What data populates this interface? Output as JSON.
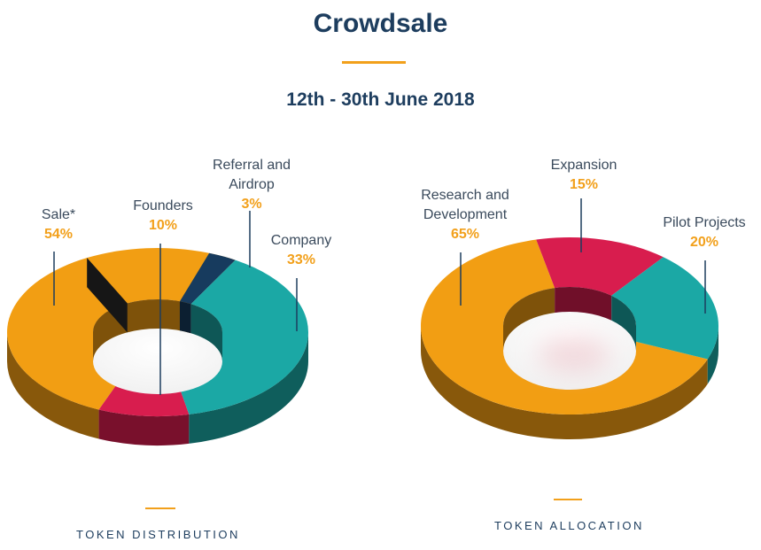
{
  "header": {
    "title": "Crowdsale",
    "date": "12th - 30th June 2018"
  },
  "colors": {
    "orange": "#f29e13",
    "red": "#d81d4e",
    "teal": "#1ba8a5",
    "navy": "#173b5e",
    "title": "#1d3d5e",
    "accent": "#f2a01b"
  },
  "chart_data": [
    {
      "type": "pie",
      "title": "",
      "caption": "TOKEN DISTRIBUTION",
      "slices": [
        {
          "label": "Sale*",
          "value": 54,
          "pct": "54%",
          "color": "#f29e13"
        },
        {
          "label": "Founders",
          "value": 10,
          "pct": "10%",
          "color": "#d81d4e"
        },
        {
          "label": "Referral and Airdrop",
          "value": 3,
          "pct": "3%",
          "color": "#173b5e"
        },
        {
          "label": "Company",
          "value": 33,
          "pct": "33%",
          "color": "#1ba8a5"
        }
      ]
    },
    {
      "type": "pie",
      "title": "",
      "caption": "TOKEN ALLOCATION",
      "slices": [
        {
          "label": "Research and Development",
          "value": 65,
          "pct": "65%",
          "color": "#f29e13"
        },
        {
          "label": "Expansion",
          "value": 15,
          "pct": "15%",
          "color": "#d81d4e"
        },
        {
          "label": "Pilot Projects",
          "value": 20,
          "pct": "20%",
          "color": "#1ba8a5"
        }
      ]
    }
  ]
}
